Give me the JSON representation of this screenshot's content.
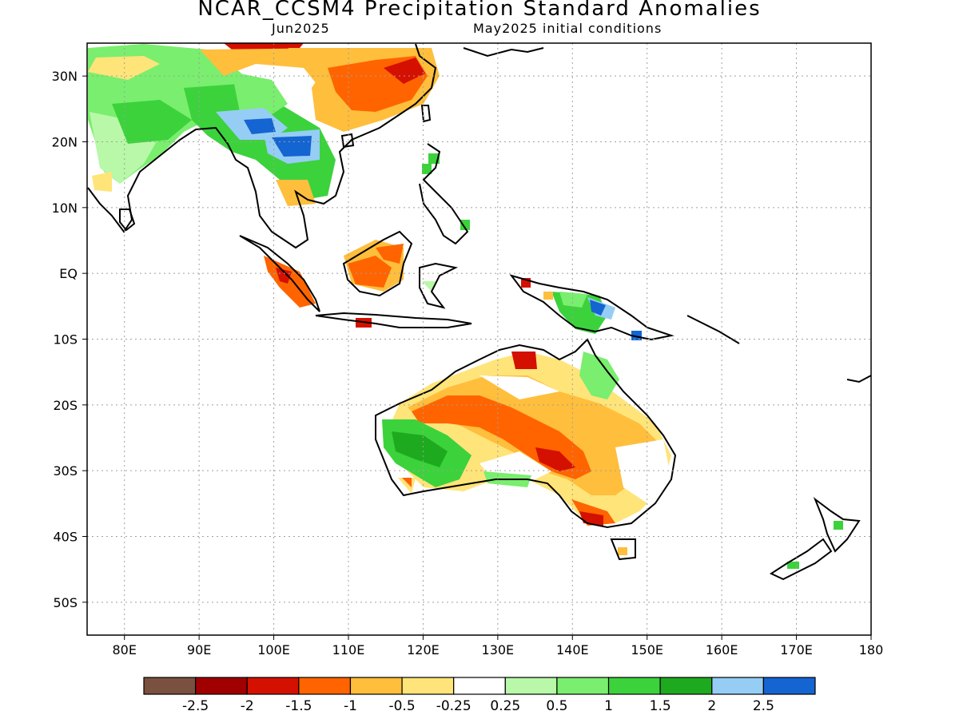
{
  "title": "NCAR_CCSM4 Precipitation Standard Anomalies",
  "subtitle_left": "Jun2025",
  "subtitle_right": "May2025 initial conditions",
  "lat_labels": [
    "30N",
    "20N",
    "10N",
    "EQ",
    "10S",
    "20S",
    "30S",
    "40S",
    "50S"
  ],
  "lon_labels": [
    "80E",
    "90E",
    "100E",
    "110E",
    "120E",
    "130E",
    "140E",
    "150E",
    "160E",
    "170E",
    "180"
  ],
  "colorbar": {
    "colors": [
      "#7a5040",
      "#a00000",
      "#d41000",
      "#ff6400",
      "#ffbe3c",
      "#ffe47a",
      "#ffffff",
      "#b8f8a8",
      "#7aee6e",
      "#3cd23c",
      "#1eaa1e",
      "#96cdf5",
      "#1464d2"
    ],
    "labels": [
      "-2.5",
      "-2",
      "-1.5",
      "-1",
      "-0.5",
      "-0.25",
      "0.25",
      "0.5",
      "1",
      "1.5",
      "2",
      "2.5"
    ]
  },
  "colors": {
    "land_outline": "#000000",
    "grid": "#a0a0a0"
  }
}
